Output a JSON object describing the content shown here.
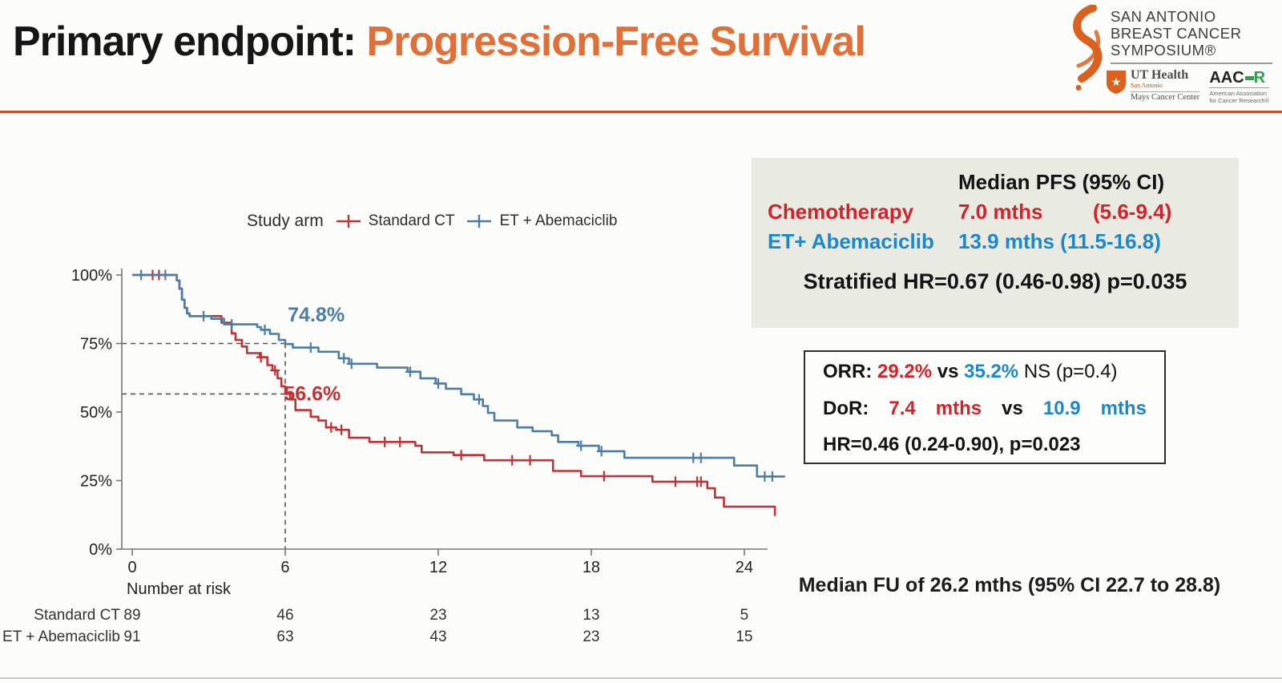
{
  "slide": {
    "title_prefix": "Primary endpoint: ",
    "title_highlight": "Progression-Free Survival",
    "logo": {
      "line1": "SAN ANTONIO",
      "line2": "BREAST CANCER",
      "line3": "SYMPOSIUM®",
      "ut_health": "UT Health",
      "ut_sub": "San Antonio",
      "ut_center": "Mays Cancer Center",
      "aacr_prefix": "AAC",
      "aacr_r": "R",
      "aacr_sub1": "American Association",
      "aacr_sub2": "for Cancer Research®"
    }
  },
  "chart_data": {
    "type": "line",
    "subtype": "kaplan-meier-step",
    "legend_title": "Study arm",
    "xlabel": "",
    "ylabel": "",
    "xlim": [
      0,
      26
    ],
    "ylim": [
      0,
      100
    ],
    "grid": false,
    "legend_position": "top",
    "x_ticks": [
      {
        "value": 0,
        "label": "0"
      },
      {
        "value": 6,
        "label": "6"
      },
      {
        "value": 12,
        "label": "12"
      },
      {
        "value": 18,
        "label": "18"
      },
      {
        "value": 24,
        "label": "24"
      }
    ],
    "y_ticks": [
      {
        "value": 100,
        "label": "100%"
      },
      {
        "value": 75,
        "label": "75%"
      },
      {
        "value": 50,
        "label": "50%"
      },
      {
        "value": 25,
        "label": "25%"
      },
      {
        "value": 0,
        "label": "0%"
      }
    ],
    "dashed_guides": {
      "h_percents": [
        75,
        56.6
      ],
      "v_month": 6
    },
    "series": [
      {
        "name": "Standard CT",
        "color": "#bf3337",
        "annotation": {
          "text": "56.6%",
          "month": 5.95,
          "pct": 54.2
        },
        "steps": [
          [
            0,
            100
          ],
          [
            1.6,
            100
          ],
          [
            1.75,
            98
          ],
          [
            1.85,
            95
          ],
          [
            1.95,
            91
          ],
          [
            2.05,
            88
          ],
          [
            2.15,
            86
          ],
          [
            2.25,
            85
          ],
          [
            3.5,
            82.6
          ],
          [
            3.9,
            78.7
          ],
          [
            4.05,
            76.3
          ],
          [
            4.3,
            73.9
          ],
          [
            4.5,
            71.5
          ],
          [
            5.0,
            70
          ],
          [
            5.3,
            67.1
          ],
          [
            5.5,
            65.2
          ],
          [
            5.7,
            62.3
          ],
          [
            5.85,
            59.4
          ],
          [
            6.0,
            56.6
          ],
          [
            6.2,
            54.6
          ],
          [
            6.4,
            50.7
          ],
          [
            7.0,
            48.3
          ],
          [
            7.3,
            46.9
          ],
          [
            7.6,
            44.4
          ],
          [
            8.0,
            43.5
          ],
          [
            8.5,
            40.6
          ],
          [
            9.3,
            39.1
          ],
          [
            11.1,
            37.7
          ],
          [
            11.35,
            35.3
          ],
          [
            12.6,
            34.3
          ],
          [
            13.8,
            32.4
          ],
          [
            16.5,
            28.5
          ],
          [
            17.6,
            26.6
          ],
          [
            20.4,
            24.6
          ],
          [
            22.55,
            22.2
          ],
          [
            22.85,
            18.8
          ],
          [
            23.2,
            15.5
          ],
          [
            25.2,
            12.1
          ]
        ],
        "censors": [
          [
            0.8,
            100
          ],
          [
            1.05,
            100
          ],
          [
            5.05,
            70
          ],
          [
            5.6,
            65.2
          ],
          [
            7.8,
            44.4
          ],
          [
            8.2,
            43.5
          ],
          [
            9.9,
            39.1
          ],
          [
            10.5,
            39.1
          ],
          [
            12.9,
            34.3
          ],
          [
            14.9,
            32.4
          ],
          [
            15.6,
            32.4
          ],
          [
            18.5,
            26.6
          ],
          [
            21.3,
            24.6
          ],
          [
            22.15,
            24.6
          ],
          [
            22.3,
            24.6
          ]
        ]
      },
      {
        "name": "ET + Abemaciclib",
        "color": "#4b7da6",
        "annotation": {
          "text": "74.8%",
          "month": 6.1,
          "pct": 83.0
        },
        "steps": [
          [
            0,
            100
          ],
          [
            1.6,
            100
          ],
          [
            1.75,
            98
          ],
          [
            1.85,
            95
          ],
          [
            1.95,
            91
          ],
          [
            2.05,
            88
          ],
          [
            2.15,
            86
          ],
          [
            2.25,
            85
          ],
          [
            3.1,
            84
          ],
          [
            3.6,
            82
          ],
          [
            4.9,
            81
          ],
          [
            5.05,
            80
          ],
          [
            5.4,
            78.5
          ],
          [
            5.75,
            76.3
          ],
          [
            6.0,
            74.8
          ],
          [
            6.3,
            73.5
          ],
          [
            7.3,
            72
          ],
          [
            8.1,
            69.6
          ],
          [
            8.5,
            67.6
          ],
          [
            9.6,
            66.2
          ],
          [
            10.8,
            64.7
          ],
          [
            11.3,
            62.3
          ],
          [
            11.9,
            60.4
          ],
          [
            12.3,
            58.5
          ],
          [
            12.9,
            56.5
          ],
          [
            13.4,
            54.6
          ],
          [
            13.75,
            52.2
          ],
          [
            13.95,
            49.7
          ],
          [
            14.2,
            46.9
          ],
          [
            15.1,
            44.4
          ],
          [
            15.7,
            43
          ],
          [
            16.45,
            41.5
          ],
          [
            16.7,
            39.1
          ],
          [
            17.5,
            37.7
          ],
          [
            18.3,
            35.7
          ],
          [
            19.3,
            33.3
          ],
          [
            23.6,
            30.5
          ],
          [
            24.5,
            26.5
          ],
          [
            25.6,
            26.5
          ]
        ],
        "censors": [
          [
            0.35,
            100
          ],
          [
            1.3,
            100
          ],
          [
            2.8,
            85
          ],
          [
            3.9,
            82
          ],
          [
            5.2,
            80
          ],
          [
            7.0,
            73.5
          ],
          [
            8.3,
            69.6
          ],
          [
            8.6,
            67.6
          ],
          [
            10.9,
            64.7
          ],
          [
            12.0,
            60.4
          ],
          [
            13.6,
            54.6
          ],
          [
            17.6,
            37.7
          ],
          [
            18.4,
            35.7
          ],
          [
            22.0,
            33.3
          ],
          [
            22.3,
            33.3
          ],
          [
            24.8,
            26.5
          ],
          [
            25.1,
            26.5
          ]
        ]
      }
    ],
    "number_at_risk": {
      "label": "Number at risk",
      "columns_months": [
        0,
        6,
        12,
        18,
        24
      ],
      "rows": [
        {
          "name": "Standard CT",
          "values": [
            89,
            46,
            23,
            13,
            5
          ]
        },
        {
          "name": "ET + Abemaciclib",
          "values": [
            91,
            63,
            43,
            23,
            15
          ]
        }
      ]
    }
  },
  "median_pfs_box": {
    "header": "Median PFS (95% CI)",
    "rows": [
      {
        "label": "Chemotherapy",
        "value": "7.0 mths",
        "ci": "(5.6-9.4)"
      },
      {
        "label": "ET+ Abemaciclib",
        "value": "13.9 mths (11.5-16.8)",
        "ci": ""
      }
    ],
    "stratified": "Stratified HR=0.67 (0.46-0.98) p=0.035"
  },
  "orr_box": {
    "line1": {
      "label": "ORR: ",
      "red": "29.2%",
      "vs": " vs ",
      "blue": "35.2%",
      "rest": " NS (p=0.4)"
    },
    "line2": {
      "label": "DoR:",
      "red_val": "7.4",
      "red_unit": "mths",
      "vs": "vs",
      "blue_val": "10.9",
      "blue_unit": "mths"
    },
    "line3": "HR=0.46 (0.24-0.90), p=0.023"
  },
  "median_fu": "Median FU of 26.2 mths (95% CI 22.7 to 28.8)",
  "colors": {
    "accent_orange": "#e0703a",
    "rule_orange": "#c4502a",
    "curve_red": "#bf3337",
    "curve_blue": "#4b7da6",
    "panel_red": "#d2232a",
    "panel_blue": "#1e87c9",
    "beige_box_bg": "#e9eae2",
    "logo_orange": "#d96220",
    "aacr_green": "#2fa14b"
  }
}
